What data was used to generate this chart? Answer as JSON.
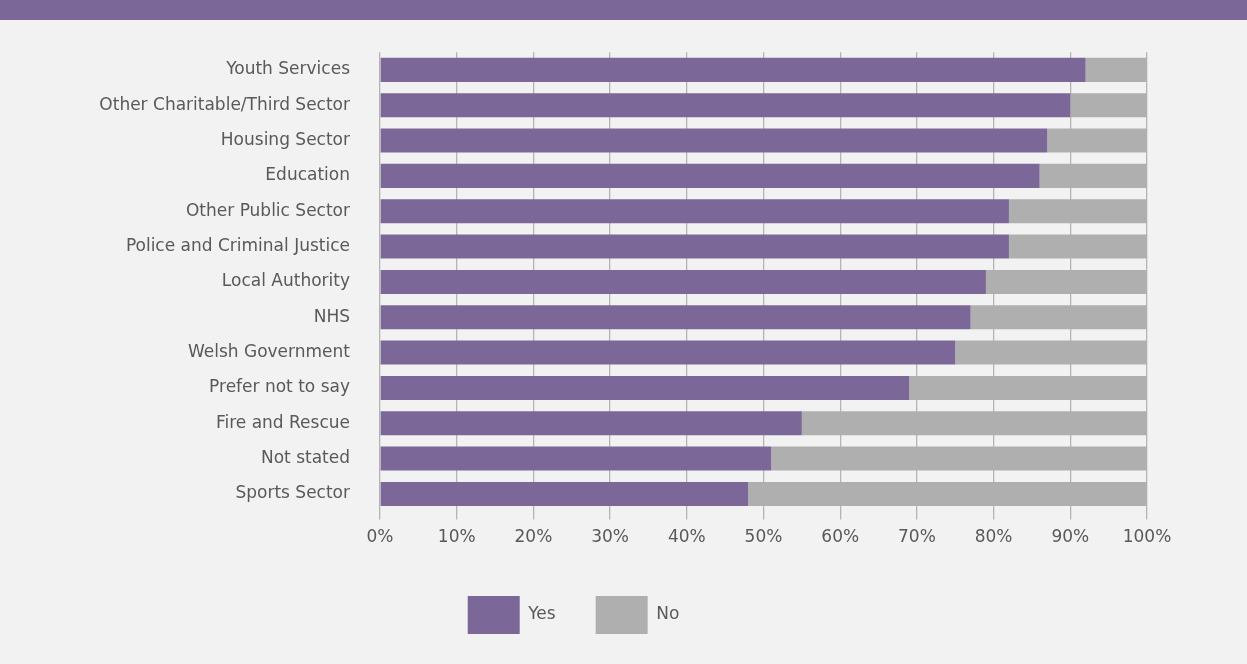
{
  "chart_data": {
    "type": "bar",
    "orientation": "horizontal",
    "stacked": true,
    "categories": [
      "Youth Services",
      "Other Charitable/Third Sector",
      "Housing Sector",
      "Education",
      "Other Public Sector",
      "Police and Criminal Justice",
      "Local Authority",
      "NHS",
      "Welsh Government",
      "Prefer not to say",
      "Fire and Rescue",
      "Not stated",
      "Sports Sector"
    ],
    "series": [
      {
        "name": "Yes",
        "color": "#7b6899",
        "values": [
          92,
          90,
          87,
          86,
          82,
          82,
          79,
          77,
          75,
          69,
          55,
          51,
          48
        ]
      },
      {
        "name": "No",
        "color": "#b0afb0",
        "values": [
          8,
          10,
          13,
          14,
          18,
          18,
          21,
          23,
          25,
          31,
          45,
          49,
          52
        ]
      }
    ],
    "xlim": [
      0,
      100
    ],
    "xticks": [
      {
        "value": 0,
        "label": "0%"
      },
      {
        "value": 10,
        "label": "10%"
      },
      {
        "value": 20,
        "label": "20%"
      },
      {
        "value": 30,
        "label": "30%"
      },
      {
        "value": 40,
        "label": "40%"
      },
      {
        "value": 50,
        "label": "50%"
      },
      {
        "value": 60,
        "label": "60%"
      },
      {
        "value": 70,
        "label": "70%"
      },
      {
        "value": 80,
        "label": "80%"
      },
      {
        "value": 90,
        "label": "90%"
      },
      {
        "value": 100,
        "label": "100%"
      }
    ],
    "grid": "x",
    "legend": "bottom"
  }
}
